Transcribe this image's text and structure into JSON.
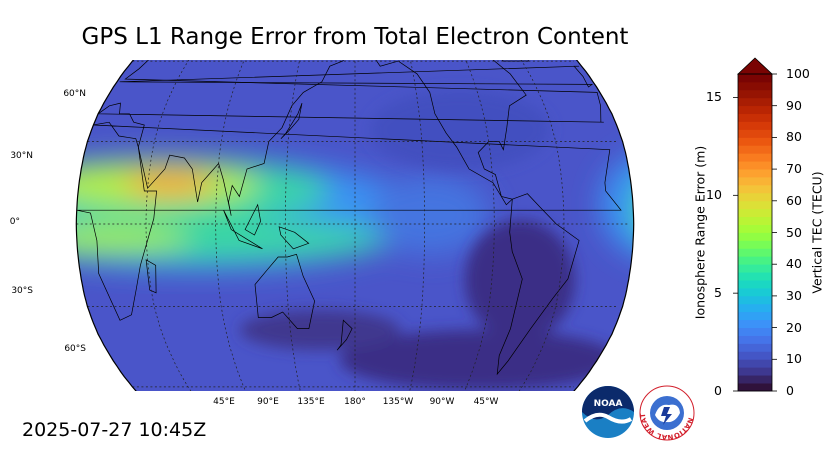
{
  "title": "GPS L1 Range Error from Total Electron Content",
  "timestamp": "2025-07-27 10:45Z",
  "map": {
    "projection": "robinson",
    "center_longitude": 180,
    "latitude_labels": [
      "60°N",
      "30°N",
      "0°",
      "30°S",
      "60°S"
    ],
    "longitude_labels": [
      "45°E",
      "90°E",
      "135°E",
      "180°",
      "135°W",
      "90°W",
      "45°W"
    ],
    "gridlines": "dotted"
  },
  "colorbar": {
    "left_axis_label": "Ionosphere Range Error (m)",
    "right_axis_label": "Vertical TEC (TECU)",
    "range_error_ticks": [
      "0",
      "5",
      "10",
      "15"
    ],
    "range_error_range": [
      0,
      16.2
    ],
    "tec_ticks": [
      "0",
      "10",
      "20",
      "30",
      "40",
      "50",
      "60",
      "70",
      "80",
      "90",
      "100"
    ],
    "tec_range": [
      0,
      100
    ],
    "extend": "max",
    "over_color": "#7a0403"
  },
  "logos": {
    "noaa": "NOAA",
    "nws": "NATIONAL WEATHER SERVICE"
  }
}
